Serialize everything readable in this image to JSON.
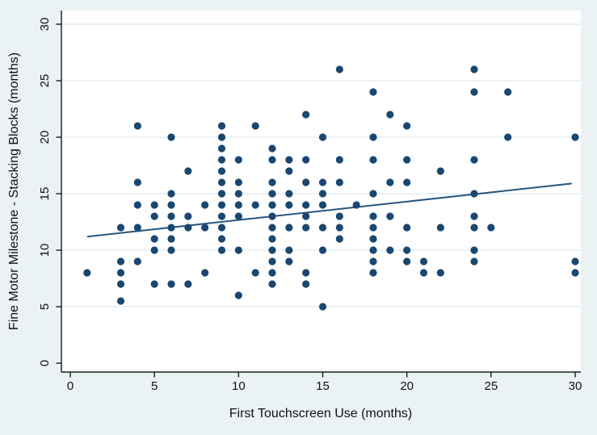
{
  "chart_data": {
    "type": "scatter",
    "title": "",
    "xlabel": "First Touchscreen Use (months)",
    "ylabel": "Fine Motor Milestone - Stacking Blocks (months)",
    "xlim": [
      0,
      30
    ],
    "ylim": [
      0,
      30
    ],
    "xticks": [
      0,
      5,
      10,
      15,
      20,
      25,
      30
    ],
    "yticks": [
      0,
      5,
      10,
      15,
      20,
      25,
      30
    ],
    "grid": "horizontal-gridlines-on",
    "legend": "none",
    "colors": {
      "marker": "#1A476F",
      "trend_line": "#27567F",
      "figure_background": "#EAF2F3",
      "plot_background": "#FFFFFF",
      "gridline": "#E2EDF3",
      "axis": "#1a1a1a"
    },
    "points": [
      [
        1,
        8
      ],
      [
        3,
        12
      ],
      [
        3,
        9
      ],
      [
        3,
        8
      ],
      [
        3,
        7
      ],
      [
        3,
        5.5
      ],
      [
        4,
        21
      ],
      [
        4,
        16
      ],
      [
        4,
        14
      ],
      [
        4,
        12
      ],
      [
        4,
        9
      ],
      [
        5,
        14
      ],
      [
        5,
        13
      ],
      [
        5,
        11
      ],
      [
        5,
        10
      ],
      [
        5,
        7
      ],
      [
        6,
        20
      ],
      [
        6,
        15
      ],
      [
        6,
        14
      ],
      [
        6,
        13
      ],
      [
        6,
        12
      ],
      [
        6,
        11
      ],
      [
        6,
        10
      ],
      [
        6,
        7
      ],
      [
        7,
        17
      ],
      [
        7,
        13
      ],
      [
        7,
        12
      ],
      [
        7,
        7
      ],
      [
        8,
        14
      ],
      [
        8,
        12
      ],
      [
        8,
        8
      ],
      [
        9,
        21
      ],
      [
        9,
        20
      ],
      [
        9,
        19
      ],
      [
        9,
        18
      ],
      [
        9,
        17
      ],
      [
        9,
        16
      ],
      [
        9,
        15
      ],
      [
        9,
        14
      ],
      [
        9,
        13
      ],
      [
        9,
        12
      ],
      [
        9,
        11
      ],
      [
        9,
        10
      ],
      [
        10,
        18
      ],
      [
        10,
        16
      ],
      [
        10,
        15
      ],
      [
        10,
        14
      ],
      [
        10,
        13
      ],
      [
        10,
        10
      ],
      [
        10,
        6
      ],
      [
        11,
        21
      ],
      [
        11,
        14
      ],
      [
        11,
        8
      ],
      [
        12,
        19
      ],
      [
        12,
        18
      ],
      [
        12,
        16
      ],
      [
        12,
        15
      ],
      [
        12,
        14
      ],
      [
        12,
        13
      ],
      [
        12,
        12
      ],
      [
        12,
        11
      ],
      [
        12,
        10
      ],
      [
        12,
        9
      ],
      [
        12,
        8
      ],
      [
        12,
        7
      ],
      [
        13,
        18
      ],
      [
        13,
        17
      ],
      [
        13,
        15
      ],
      [
        13,
        14
      ],
      [
        13,
        12
      ],
      [
        13,
        10
      ],
      [
        13,
        9
      ],
      [
        14,
        22
      ],
      [
        14,
        18
      ],
      [
        14,
        16
      ],
      [
        14,
        14
      ],
      [
        14,
        13
      ],
      [
        14,
        12
      ],
      [
        14,
        8
      ],
      [
        14,
        7
      ],
      [
        15,
        20
      ],
      [
        15,
        16
      ],
      [
        15,
        15
      ],
      [
        15,
        14
      ],
      [
        15,
        12
      ],
      [
        15,
        10
      ],
      [
        15,
        5
      ],
      [
        16,
        26
      ],
      [
        16,
        18
      ],
      [
        16,
        16
      ],
      [
        16,
        13
      ],
      [
        16,
        12
      ],
      [
        16,
        11
      ],
      [
        17,
        14
      ],
      [
        18,
        24
      ],
      [
        18,
        20
      ],
      [
        18,
        18
      ],
      [
        18,
        15
      ],
      [
        18,
        13
      ],
      [
        18,
        12
      ],
      [
        18,
        11
      ],
      [
        18,
        10
      ],
      [
        18,
        9
      ],
      [
        18,
        8
      ],
      [
        19,
        22
      ],
      [
        19,
        16
      ],
      [
        19,
        13
      ],
      [
        19,
        10
      ],
      [
        20,
        21
      ],
      [
        20,
        18
      ],
      [
        20,
        16
      ],
      [
        20,
        12
      ],
      [
        20,
        10
      ],
      [
        20,
        9
      ],
      [
        21,
        9
      ],
      [
        21,
        8
      ],
      [
        22,
        17
      ],
      [
        22,
        12
      ],
      [
        22,
        8
      ],
      [
        24,
        26
      ],
      [
        24,
        24
      ],
      [
        24,
        18
      ],
      [
        24,
        15
      ],
      [
        24,
        13
      ],
      [
        24,
        12
      ],
      [
        24,
        10
      ],
      [
        24,
        9
      ],
      [
        25,
        12
      ],
      [
        26,
        24
      ],
      [
        26,
        20
      ],
      [
        30,
        20
      ],
      [
        30,
        9
      ],
      [
        30,
        8
      ]
    ],
    "trendline": {
      "x1": 1.0,
      "y1": 11.2,
      "x2": 29.8,
      "y2": 15.9
    }
  }
}
